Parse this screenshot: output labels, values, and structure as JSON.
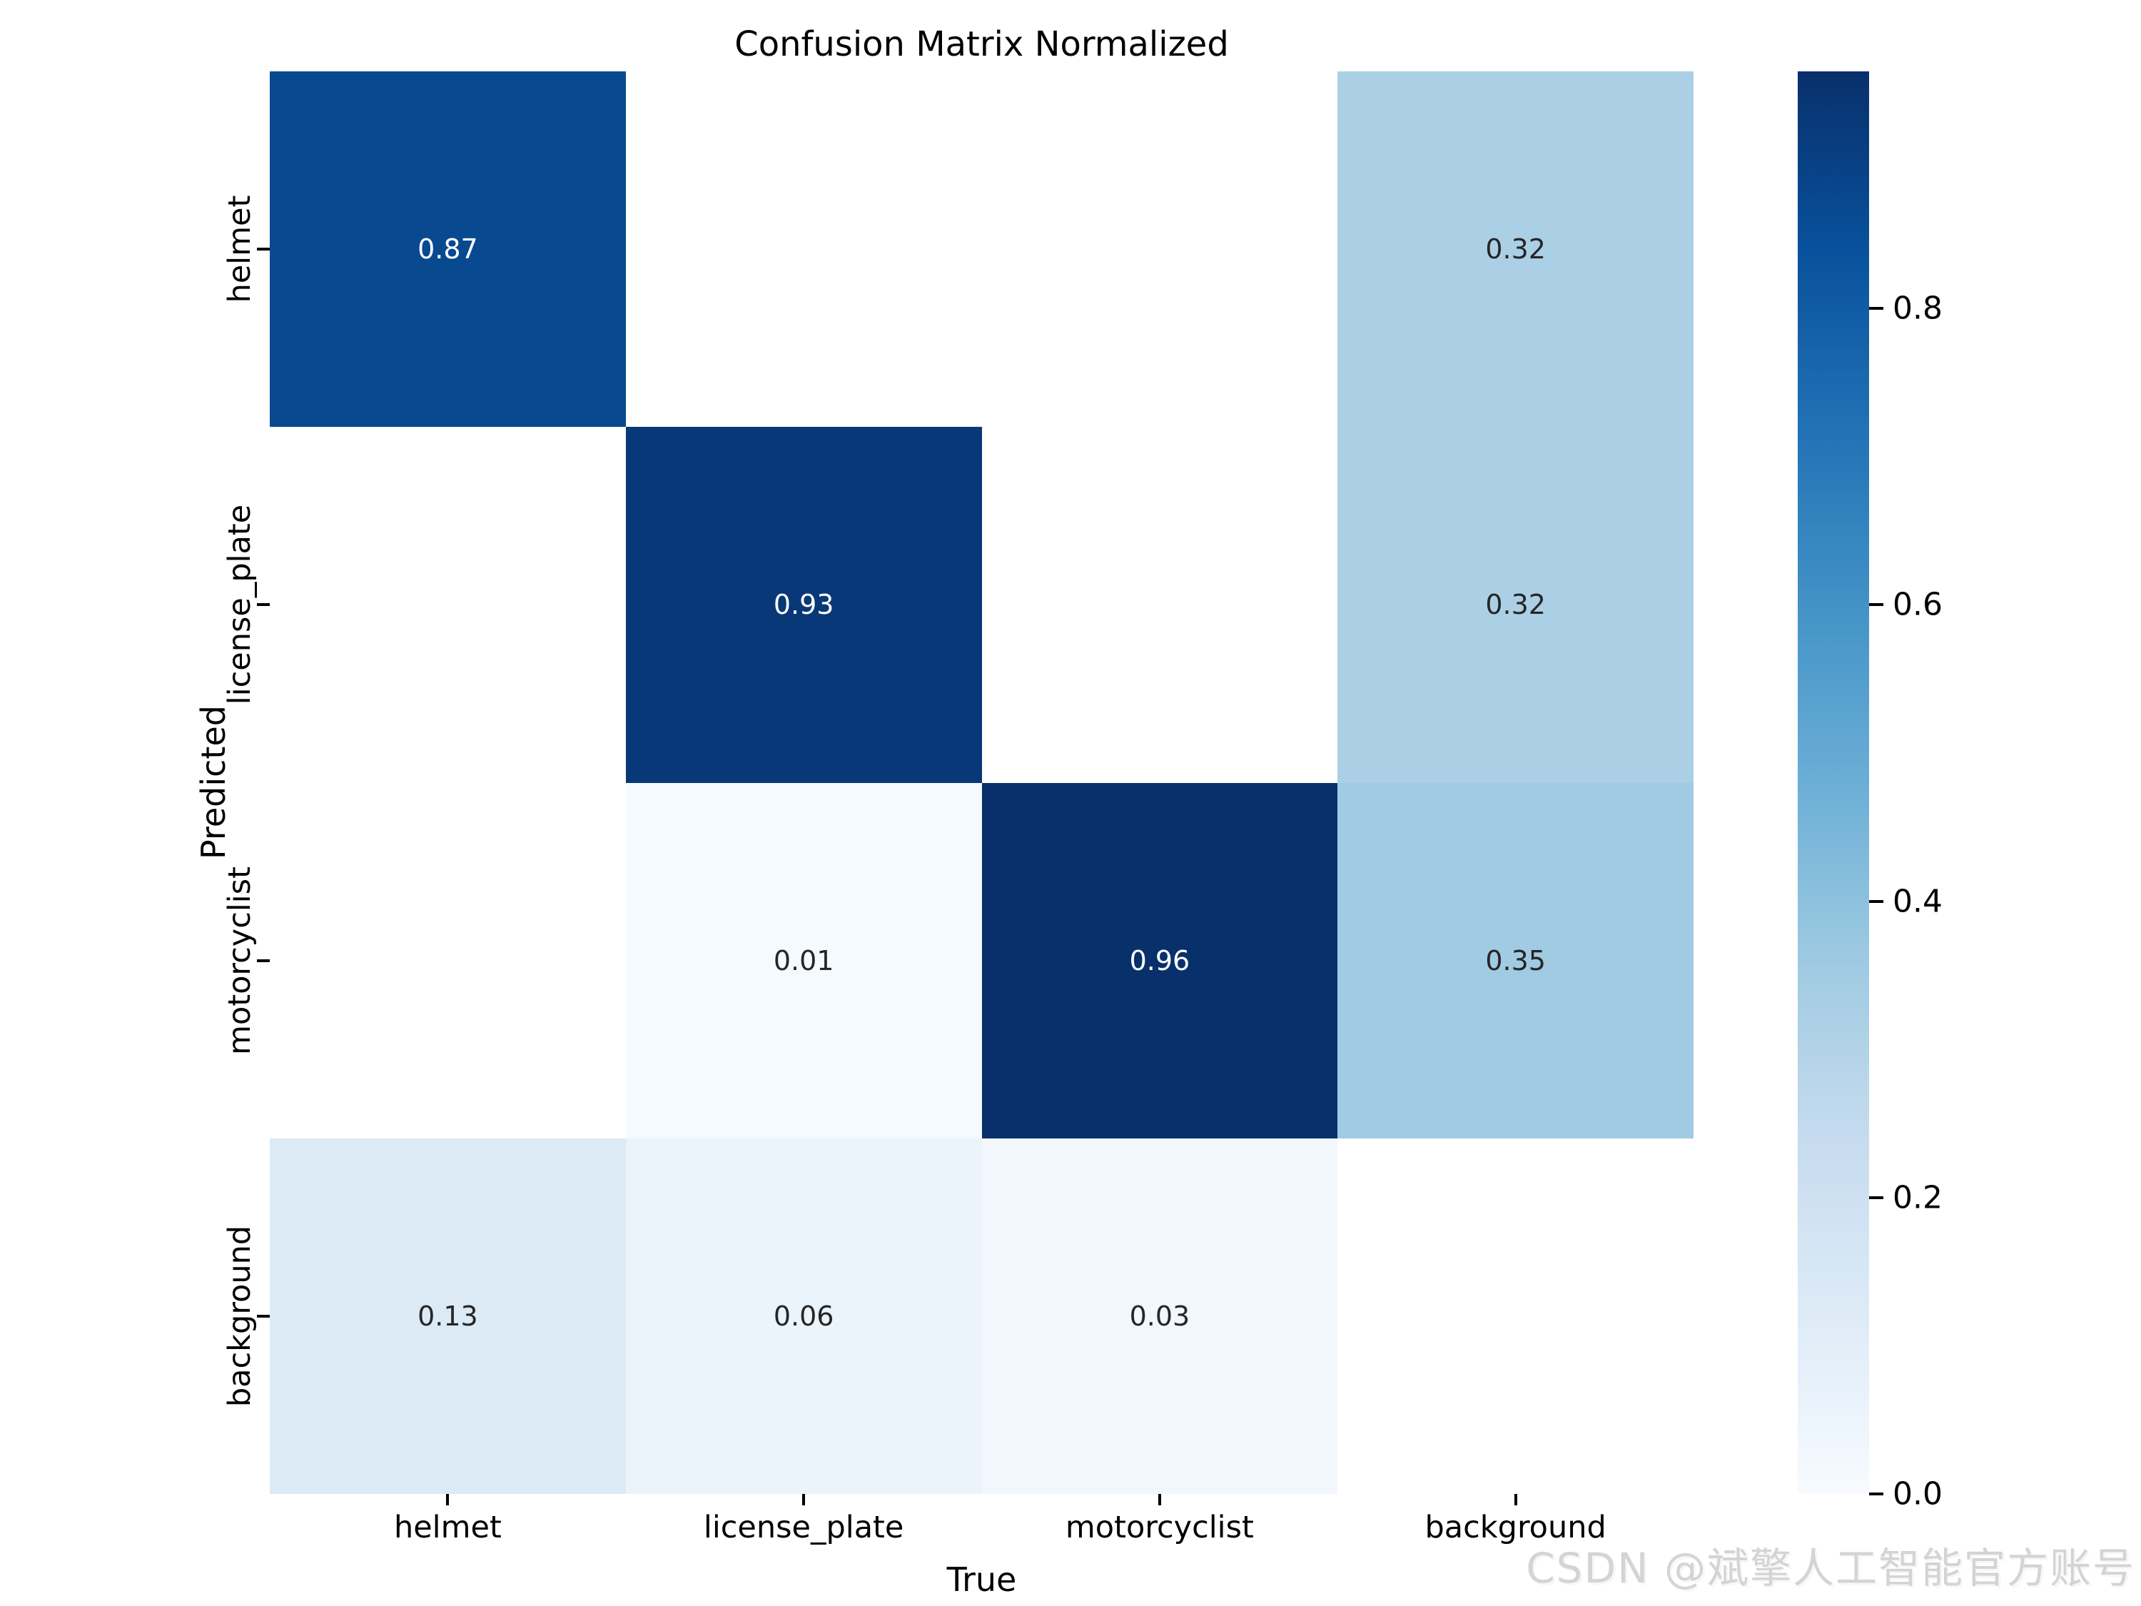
{
  "title": "Confusion Matrix Normalized",
  "watermark": "CSDN @斌擎人工智能官方账号",
  "chart_data": {
    "type": "heatmap",
    "title": "Confusion Matrix Normalized",
    "xlabel": "True",
    "ylabel": "Predicted",
    "x_categories": [
      "helmet",
      "license_plate",
      "motorcyclist",
      "background"
    ],
    "y_categories": [
      "helmet",
      "license_plate",
      "motorcyclist",
      "background"
    ],
    "matrix": [
      [
        0.87,
        null,
        null,
        0.32
      ],
      [
        null,
        0.93,
        null,
        0.32
      ],
      [
        null,
        0.01,
        0.96,
        0.35
      ],
      [
        0.13,
        0.06,
        0.03,
        null
      ]
    ],
    "value_decimals": 2,
    "vmin": 0,
    "vmax": 0.96,
    "colormap": "Blues",
    "colormap_stops": [
      "#f7fbff",
      "#deebf7",
      "#c6dbef",
      "#9ecae1",
      "#6baed6",
      "#4292c6",
      "#2171b5",
      "#08519c",
      "#08306b"
    ],
    "nan_color": "#ffffff",
    "annotation_dark_color": "#262626",
    "annotation_light_color": "#ffffff",
    "tick_color": "#000000",
    "colorbar": {
      "ticks": [
        0.0,
        0.2,
        0.4,
        0.6,
        0.8
      ],
      "tick_labels": [
        "0.0",
        "0.2",
        "0.4",
        "0.6",
        "0.8"
      ],
      "position": "right"
    },
    "grid": false,
    "legend_position": "right-colorbar"
  }
}
